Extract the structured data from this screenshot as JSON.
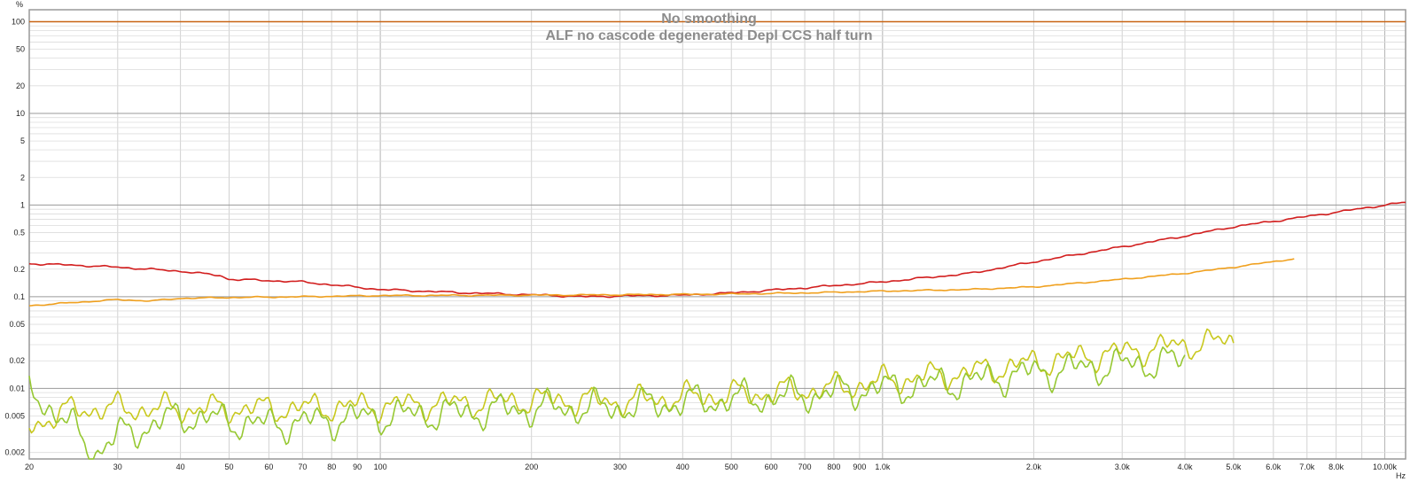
{
  "chart_data": {
    "type": "line",
    "title": "No smoothing",
    "subtitle": "ALF no cascode degenerated Depl CCS half turn",
    "xlabel": "Hz",
    "ylabel": "%",
    "x_scale": "log",
    "y_scale": "log",
    "xlim": [
      20,
      11000
    ],
    "ylim": [
      0.0017,
      135
    ],
    "grid": true,
    "x_ticks": [
      {
        "value": 20,
        "label": "20"
      },
      {
        "value": 30,
        "label": "30"
      },
      {
        "value": 40,
        "label": "40"
      },
      {
        "value": 50,
        "label": "50"
      },
      {
        "value": 60,
        "label": "60"
      },
      {
        "value": 70,
        "label": "70"
      },
      {
        "value": 80,
        "label": "80"
      },
      {
        "value": 90,
        "label": "90"
      },
      {
        "value": 100,
        "label": "100"
      },
      {
        "value": 200,
        "label": "200"
      },
      {
        "value": 300,
        "label": "300"
      },
      {
        "value": 400,
        "label": "400"
      },
      {
        "value": 500,
        "label": "500"
      },
      {
        "value": 600,
        "label": "600"
      },
      {
        "value": 700,
        "label": "700"
      },
      {
        "value": 800,
        "label": "800"
      },
      {
        "value": 900,
        "label": "900"
      },
      {
        "value": 1000,
        "label": "1.0k"
      },
      {
        "value": 2000,
        "label": "2.0k"
      },
      {
        "value": 3000,
        "label": "3.0k"
      },
      {
        "value": 4000,
        "label": "4.0k"
      },
      {
        "value": 5000,
        "label": "5.0k"
      },
      {
        "value": 6000,
        "label": "6.0k"
      },
      {
        "value": 7000,
        "label": "7.0k"
      },
      {
        "value": 8000,
        "label": "8.0k"
      },
      {
        "value": 10000,
        "label": "10.00k"
      }
    ],
    "y_ticks": [
      {
        "value": 100,
        "label": "100"
      },
      {
        "value": 50,
        "label": "50"
      },
      {
        "value": 20,
        "label": "20"
      },
      {
        "value": 10,
        "label": "10"
      },
      {
        "value": 5,
        "label": "5"
      },
      {
        "value": 2,
        "label": "2"
      },
      {
        "value": 1,
        "label": "1"
      },
      {
        "value": 0.5,
        "label": "0.5"
      },
      {
        "value": 0.2,
        "label": "0.2"
      },
      {
        "value": 0.1,
        "label": "0.1"
      },
      {
        "value": 0.05,
        "label": "0.05"
      },
      {
        "value": 0.02,
        "label": "0.02"
      },
      {
        "value": 0.01,
        "label": "0.01"
      },
      {
        "value": 0.005,
        "label": "0.005"
      },
      {
        "value": 0.002,
        "label": "0.002"
      }
    ],
    "series": [
      {
        "color": "#c86414",
        "noise": 0,
        "x": [
          20,
          11000
        ],
        "y": [
          100,
          100
        ]
      },
      {
        "color": "#d21e1e",
        "noise": 0.012,
        "x": [
          20,
          25,
          30,
          40,
          48,
          50,
          60,
          70,
          80,
          100,
          150,
          200,
          260,
          300,
          350,
          400,
          500,
          700,
          1000,
          1500,
          2000,
          3000,
          4000,
          5000,
          7000,
          10000,
          11000
        ],
        "y": [
          0.23,
          0.22,
          0.21,
          0.19,
          0.17,
          0.155,
          0.15,
          0.145,
          0.135,
          0.12,
          0.11,
          0.105,
          0.1,
          0.102,
          0.103,
          0.104,
          0.11,
          0.125,
          0.145,
          0.18,
          0.24,
          0.35,
          0.46,
          0.58,
          0.75,
          1.0,
          1.07
        ]
      },
      {
        "color": "#f0a01e",
        "noise": 0.008,
        "x": [
          20,
          25,
          30,
          35,
          40,
          50,
          70,
          100,
          200,
          300,
          500,
          700,
          1000,
          1500,
          2000,
          3000,
          4000,
          5000,
          6600
        ],
        "y": [
          0.08,
          0.087,
          0.093,
          0.09,
          0.096,
          0.098,
          0.1,
          0.103,
          0.104,
          0.105,
          0.107,
          0.11,
          0.115,
          0.12,
          0.128,
          0.155,
          0.18,
          0.21,
          0.26
        ]
      },
      {
        "color": "#c8c81e",
        "noise": 0.18,
        "x": [
          20,
          25,
          30,
          40,
          60,
          100,
          150,
          200,
          300,
          400,
          600,
          800,
          1000,
          1500,
          2000,
          3000,
          4000,
          5000
        ],
        "y": [
          0.004,
          0.006,
          0.006,
          0.006,
          0.006,
          0.0065,
          0.007,
          0.0075,
          0.0072,
          0.008,
          0.009,
          0.01,
          0.012,
          0.015,
          0.019,
          0.025,
          0.03,
          0.033
        ]
      },
      {
        "color": "#96c832",
        "noise": 0.22,
        "x": [
          20,
          24,
          27,
          30,
          40,
          60,
          100,
          150,
          200,
          300,
          400,
          600,
          800,
          1000,
          1500,
          2000,
          3000,
          4000
        ],
        "y": [
          0.01,
          0.004,
          0.002,
          0.003,
          0.005,
          0.004,
          0.005,
          0.0055,
          0.006,
          0.0062,
          0.007,
          0.008,
          0.009,
          0.01,
          0.012,
          0.015,
          0.018,
          0.02
        ]
      }
    ]
  }
}
